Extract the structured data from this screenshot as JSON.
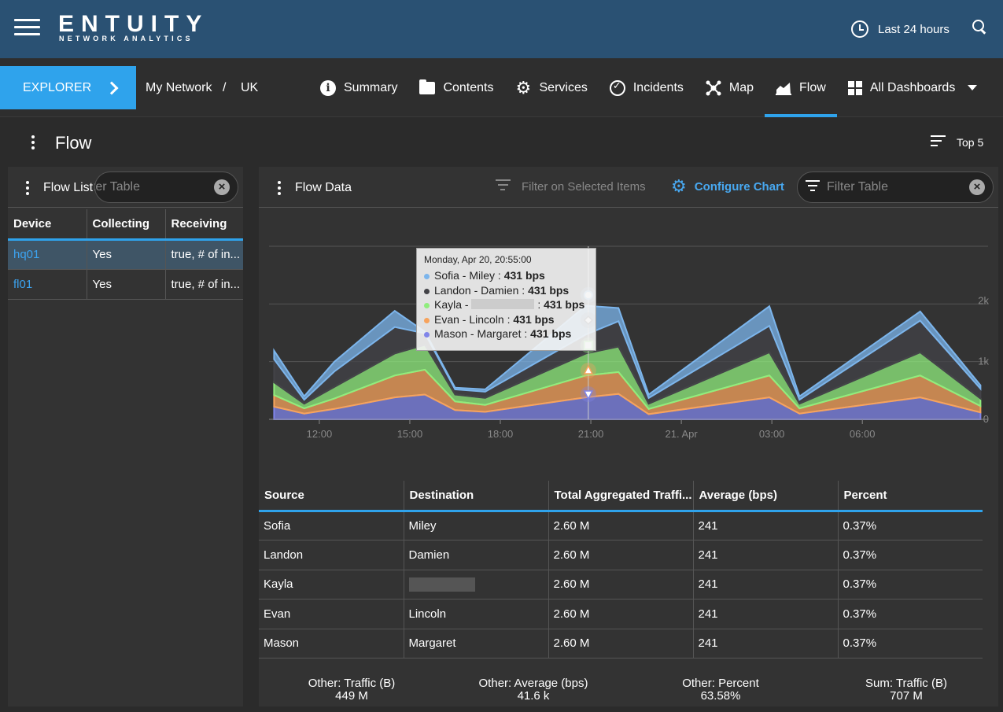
{
  "header": {
    "logo": "ENTUITY",
    "logo_sub": "NETWORK ANALYTICS",
    "time_range": "Last 24 hours",
    "icons": [
      "menu-icon",
      "clock-icon",
      "search-icon"
    ]
  },
  "nav": {
    "explorer_label": "EXPLORER",
    "breadcrumb": [
      "My Network",
      "/",
      "UK"
    ],
    "items": [
      {
        "label": "Summary",
        "icon": "info-icon"
      },
      {
        "label": "Contents",
        "icon": "folder-icon"
      },
      {
        "label": "Services",
        "icon": "services-gear-icon"
      },
      {
        "label": "Incidents",
        "icon": "alarm-check-icon"
      },
      {
        "label": "Map",
        "icon": "network-map-icon"
      },
      {
        "label": "Flow",
        "icon": "flow-chart-icon",
        "active": true
      },
      {
        "label": "All Dashboards",
        "icon": "dashboards-grid-icon"
      }
    ],
    "accent_color": "#2fa3ec"
  },
  "page": {
    "title": "Flow",
    "top_label": "Top 5"
  },
  "flow_list": {
    "title": "Flow List",
    "filter_placeholder": "Filter Table",
    "columns": [
      "Device",
      "Collecting",
      "Receiving"
    ],
    "rows": [
      {
        "device": "hq01",
        "collecting": "Yes",
        "receiving": "true, # of in...",
        "selected": true
      },
      {
        "device": "fl01",
        "collecting": "Yes",
        "receiving": "true, # of in..."
      }
    ]
  },
  "flow_data": {
    "title": "Flow Data",
    "filter_selected_label": "Filter on Selected Items",
    "configure_label": "Configure Chart",
    "filter_placeholder": "Filter Table",
    "tooltip": {
      "header": "Monday, Apr 20, 20:55:00",
      "rows": [
        {
          "name": "Sofia - Miley",
          "value": "431 bps",
          "color": "#7cb5ec"
        },
        {
          "name": "Landon - Damien",
          "value": "431 bps",
          "color": "#434348"
        },
        {
          "name": "Kayla - ",
          "value": "431 bps",
          "color": "#90ed7d",
          "redacted": true
        },
        {
          "name": "Evan - Lincoln",
          "value": "431 bps",
          "color": "#f7a35c"
        },
        {
          "name": "Mason - Margaret",
          "value": "431 bps",
          "color": "#8085e9"
        }
      ]
    },
    "table": {
      "columns": [
        "Source",
        "Destination",
        "Total Aggregated Traffi...",
        "Average (bps)",
        "Percent"
      ],
      "rows": [
        [
          "Sofia",
          "Miley",
          "2.60 M",
          "241",
          "0.37%"
        ],
        [
          "Landon",
          "Damien",
          "2.60 M",
          "241",
          "0.37%"
        ],
        [
          "Kayla",
          "",
          "2.60 M",
          "241",
          "0.37%"
        ],
        [
          "Evan",
          "Lincoln",
          "2.60 M",
          "241",
          "0.37%"
        ],
        [
          "Mason",
          "Margaret",
          "2.60 M",
          "241",
          "0.37%"
        ]
      ]
    },
    "footer": [
      {
        "label": "Other: Traffic (B)",
        "value": "449 M"
      },
      {
        "label": "Other: Average (bps)",
        "value": "41.6 k"
      },
      {
        "label": "Other: Percent",
        "value": "63.58%"
      },
      {
        "label": "Sum: Traffic (B)",
        "value": "707 M"
      }
    ]
  },
  "chart_data": {
    "type": "area",
    "stacked": true,
    "x_tick_labels": [
      "12:00",
      "15:00",
      "18:00",
      "21:00",
      "21. Apr",
      "03:00",
      "06:00"
    ],
    "y_tick_labels": [
      "2k",
      "1k",
      "0"
    ],
    "x": [
      "10:30",
      "11:30",
      "12:30",
      "14:30",
      "15:30",
      "16:30",
      "17:30",
      "20:50",
      "21:55",
      "22:55",
      "02:55",
      "03:55",
      "07:55",
      "09:55"
    ],
    "series": [
      {
        "name": "Mason - Margaret",
        "color": "#8085e9",
        "values": [
          220,
          100,
          180,
          380,
          430,
          160,
          130,
          380,
          440,
          90,
          380,
          100,
          380,
          120
        ]
      },
      {
        "name": "Evan - Lincoln",
        "color": "#f7a35c",
        "values": [
          200,
          90,
          180,
          380,
          430,
          150,
          120,
          380,
          380,
          90,
          380,
          90,
          380,
          110
        ]
      },
      {
        "name": "Kayla - ",
        "color": "#90ed7d",
        "values": [
          220,
          80,
          200,
          380,
          430,
          120,
          120,
          380,
          440,
          90,
          400,
          80,
          400,
          130
        ]
      },
      {
        "name": "Landon - Damien",
        "color": "#434348",
        "values": [
          400,
          70,
          270,
          460,
          200,
          90,
          110,
          330,
          440,
          100,
          460,
          70,
          550,
          170
        ]
      },
      {
        "name": "Sofia - Miley",
        "color": "#7cb5ec",
        "values": [
          150,
          60,
          170,
          280,
          30,
          30,
          40,
          500,
          230,
          60,
          340,
          60,
          160,
          60
        ]
      }
    ],
    "tooltip_x": "20:55",
    "grid": true,
    "legend": "none"
  }
}
